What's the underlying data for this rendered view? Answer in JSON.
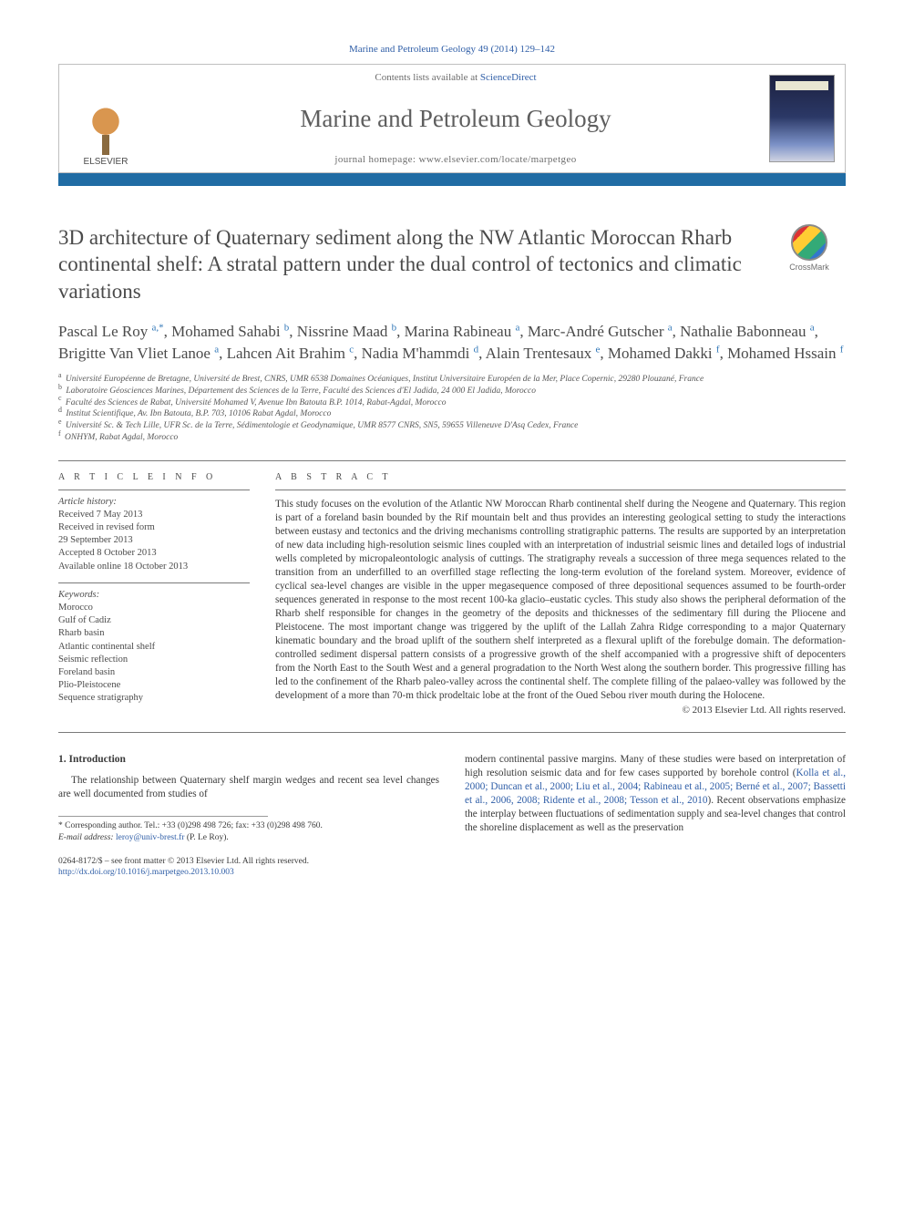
{
  "journal_ref": "Marine and Petroleum Geology 49 (2014) 129–142",
  "header": {
    "contents_pre": "Contents lists available at ",
    "contents_link": "ScienceDirect",
    "journal_title": "Marine and Petroleum Geology",
    "homepage_pre": "journal homepage: ",
    "homepage_url": "www.elsevier.com/locate/marpetgeo",
    "publisher_label": "ELSEVIER"
  },
  "crossmark_label": "CrossMark",
  "title": "3D architecture of Quaternary sediment along the NW Atlantic Moroccan Rharb continental shelf: A stratal pattern under the dual control of tectonics and climatic variations",
  "authors_html": "Pascal Le Roy <sup>a,*</sup>, Mohamed Sahabi <sup>b</sup>, Nissrine Maad <sup>b</sup>, Marina Rabineau <sup>a</sup>, Marc-André Gutscher <sup>a</sup>, Nathalie Babonneau <sup>a</sup>, Brigitte Van Vliet Lanoe <sup>a</sup>, Lahcen Ait Brahim <sup>c</sup>, Nadia M'hammdi <sup>d</sup>, Alain Trentesaux <sup>e</sup>, Mohamed Dakki <sup>f</sup>, Mohamed Hssain <sup>f</sup>",
  "affiliations": [
    {
      "key": "a",
      "text": "Université Européenne de Bretagne, Université de Brest, CNRS, UMR 6538 Domaines Océaniques, Institut Universitaire Européen de la Mer, Place Copernic, 29280 Plouzané, France"
    },
    {
      "key": "b",
      "text": "Laboratoire Géosciences Marines, Département des Sciences de la Terre, Faculté des Sciences d'El Jadida, 24 000 El Jadida, Morocco"
    },
    {
      "key": "c",
      "text": "Faculté des Sciences de Rabat, Université Mohamed V, Avenue Ibn Batouta B.P. 1014, Rabat-Agdal, Morocco"
    },
    {
      "key": "d",
      "text": "Institut Scientifique, Av. Ibn Batouta, B.P. 703, 10106 Rabat Agdal, Morocco"
    },
    {
      "key": "e",
      "text": "Université Sc. & Tech Lille, UFR Sc. de la Terre, Sédimentologie et Geodynamique, UMR 8577 CNRS, SN5, 59655 Villeneuve D'Asq Cedex, France"
    },
    {
      "key": "f",
      "text": "ONHYM, Rabat Agdal, Morocco"
    }
  ],
  "article_info": {
    "label": "A R T I C L E   I N F O",
    "history_heading": "Article history:",
    "history": [
      "Received 7 May 2013",
      "Received in revised form",
      "29 September 2013",
      "Accepted 8 October 2013",
      "Available online 18 October 2013"
    ],
    "keywords_heading": "Keywords:",
    "keywords": [
      "Morocco",
      "Gulf of Cadiz",
      "Rharb basin",
      "Atlantic continental shelf",
      "Seismic reflection",
      "Foreland basin",
      "Plio-Pleistocene",
      "Sequence stratigraphy"
    ]
  },
  "abstract": {
    "label": "A B S T R A C T",
    "text": "This study focuses on the evolution of the Atlantic NW Moroccan Rharb continental shelf during the Neogene and Quaternary. This region is part of a foreland basin bounded by the Rif mountain belt and thus provides an interesting geological setting to study the interactions between eustasy and tectonics and the driving mechanisms controlling stratigraphic patterns. The results are supported by an interpretation of new data including high-resolution seismic lines coupled with an interpretation of industrial seismic lines and detailed logs of industrial wells completed by micropaleontologic analysis of cuttings. The stratigraphy reveals a succession of three mega sequences related to the transition from an underfilled to an overfilled stage reflecting the long-term evolution of the foreland system. Moreover, evidence of cyclical sea-level changes are visible in the upper megasequence composed of three depositional sequences assumed to be fourth-order sequences generated in response to the most recent 100-ka glacio–eustatic cycles. This study also shows the peripheral deformation of the Rharb shelf responsible for changes in the geometry of the deposits and thicknesses of the sedimentary fill during the Pliocene and Pleistocene. The most important change was triggered by the uplift of the Lallah Zahra Ridge corresponding to a major Quaternary kinematic boundary and the broad uplift of the southern shelf interpreted as a flexural uplift of the forebulge domain. The deformation-controlled sediment dispersal pattern consists of a progressive growth of the shelf accompanied with a progressive shift of depocenters from the North East to the South West and a general progradation to the North West along the southern border. This progressive filling has led to the confinement of the Rharb paleo-valley across the continental shelf. The complete filling of the palaeo-valley was followed by the development of a more than 70-m thick prodeltaic lobe at the front of the Oued Sebou river mouth during the Holocene.",
    "copyright": "© 2013 Elsevier Ltd. All rights reserved."
  },
  "body": {
    "section_heading": "1. Introduction",
    "col1_para": "The relationship between Quaternary shelf margin wedges and recent sea level changes are well documented from studies of",
    "col2_para_pre": "modern continental passive margins. Many of these studies were based on interpretation of high resolution seismic data and for few cases supported by borehole control (",
    "col2_refs": "Kolla et al., 2000; Duncan et al., 2000; Liu et al., 2004; Rabineau et al., 2005; Berné et al., 2007; Bassetti et al., 2006, 2008; Ridente et al., 2008; Tesson et al., 2010",
    "col2_para_post": "). Recent observations emphasize the interplay between fluctuations of sedimentation supply and sea-level changes that control the shoreline displacement as well as the preservation"
  },
  "corresponding": {
    "label": "* Corresponding author. Tel.: +33 (0)298 498 726; fax: +33 (0)298 498 760.",
    "email_label": "E-mail address: ",
    "email": "leroy@univ-brest.fr",
    "email_post": " (P. Le Roy)."
  },
  "footer": {
    "line1": "0264-8172/$ – see front matter © 2013 Elsevier Ltd. All rights reserved.",
    "doi": "http://dx.doi.org/10.1016/j.marpetgeo.2013.10.003"
  },
  "colors": {
    "link": "#2f5ea7",
    "accent_bar": "#206ca4",
    "text": "#3a3a3a",
    "muted": "#6c6c6c"
  }
}
